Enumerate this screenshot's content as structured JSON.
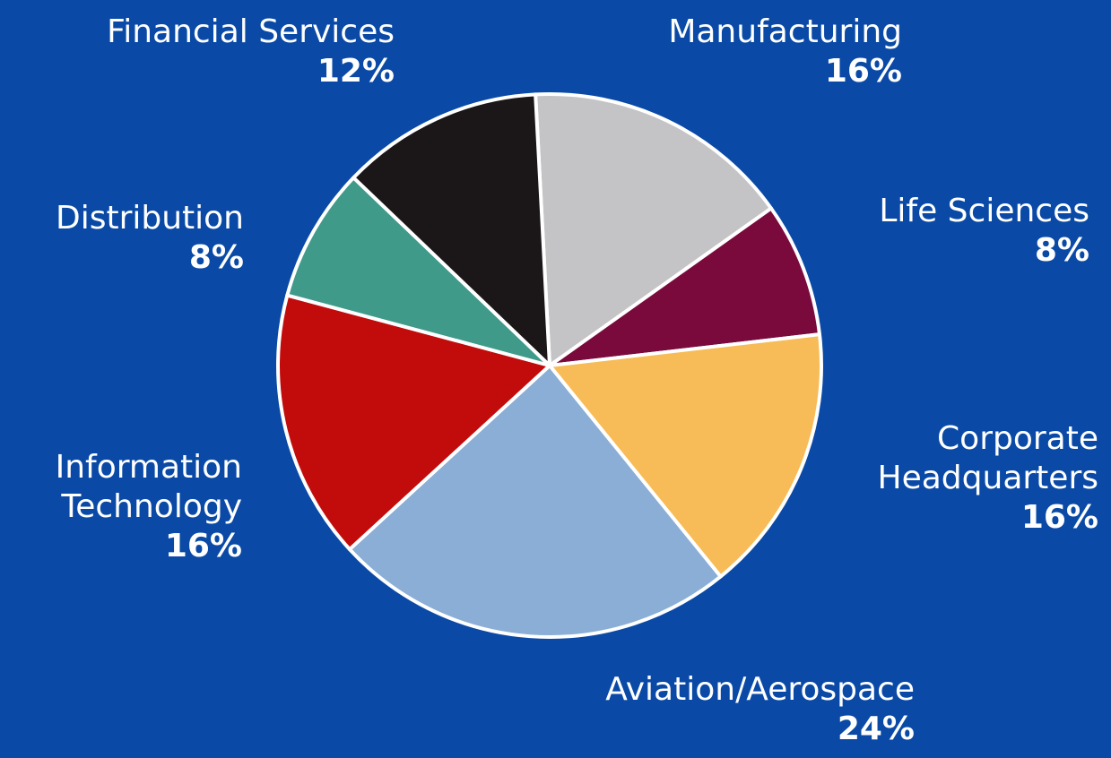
{
  "chart_data": {
    "type": "pie",
    "title": "",
    "slices": [
      {
        "name": "Manufacturing",
        "value": 16,
        "label": "16%",
        "color": "#c4c4c7"
      },
      {
        "name": "Life Sciences",
        "value": 8,
        "label": "8%",
        "color": "#7a0a3c"
      },
      {
        "name": "Corporate Headquarters",
        "value": 16,
        "label": "16%",
        "color": "#f7bc57"
      },
      {
        "name": "Aviation/Aerospace",
        "value": 24,
        "label": "24%",
        "color": "#8aaed6"
      },
      {
        "name": "Information Technology",
        "value": 16,
        "label": "16%",
        "color": "#c20c0c"
      },
      {
        "name": "Distribution",
        "value": 8,
        "label": "8%",
        "color": "#3f9a8a"
      },
      {
        "name": "Financial Services",
        "value": 12,
        "label": "12%",
        "color": "#1b1718"
      }
    ],
    "labels": {
      "financial": {
        "name": "Financial Services",
        "pct": "12%"
      },
      "manufacturing": {
        "name": "Manufacturing",
        "pct": "16%"
      },
      "life": {
        "name": "Life Sciences",
        "pct": "8%"
      },
      "distribution": {
        "name": "Distribution",
        "pct": "8%"
      },
      "corporate": {
        "line1": "Corporate",
        "line2": "Headquarters",
        "pct": "16%"
      },
      "infotech": {
        "line1": "Information",
        "line2": "Technology",
        "pct": "16%"
      },
      "aviation": {
        "name": "Aviation/Aerospace",
        "pct": "24%"
      }
    },
    "colors": {
      "background": "#0a4aa6",
      "slice_border": "#ffffff",
      "text": "#ffffff"
    }
  }
}
